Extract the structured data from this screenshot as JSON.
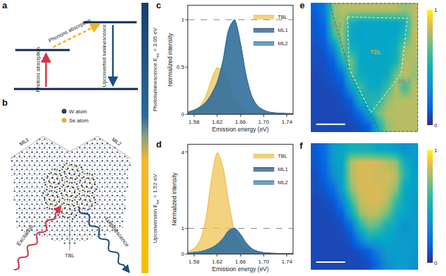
{
  "panels": {
    "a": {
      "letter": "a",
      "labels": {
        "phonons": "Phonons absorption",
        "photons": "Photons absorption",
        "luminescence": "Upconverted luminescence"
      }
    },
    "b": {
      "letter": "b",
      "legend": [
        {
          "name": "W atom",
          "color": "#2b3f5c"
        },
        {
          "name": "Se atom",
          "color": "#d9b13b"
        }
      ],
      "labels": {
        "left_flake": "ML1",
        "right_flake": "ML2",
        "center": "TBL",
        "excitation": "Excitation",
        "luminescence": "Luminescence"
      }
    },
    "strip": {
      "top": {
        "label": "Photoluminescence",
        "symbol": "E",
        "subscript": "ex",
        "value_text": "= 3.05 eV"
      },
      "bottom": {
        "label": "Upconversion",
        "symbol": "E",
        "subscript": "ex",
        "value_text": "= 1.52 eV"
      }
    }
  },
  "chart_data": [
    {
      "panel": "c",
      "type": "area",
      "x_label": "Emission energy (eV)",
      "y_label": "Normalized intensity",
      "x": [
        1.57,
        1.58,
        1.59,
        1.6,
        1.61,
        1.62,
        1.63,
        1.64,
        1.65,
        1.66,
        1.67,
        1.68,
        1.69,
        1.7,
        1.71,
        1.72,
        1.73,
        1.74,
        1.75
      ],
      "series": [
        {
          "name": "TBL",
          "color": "#eec14f",
          "values": [
            0.02,
            0.04,
            0.08,
            0.18,
            0.36,
            0.49,
            0.45,
            0.3,
            0.15,
            0.07,
            0.035,
            0.02,
            0.012,
            0.008,
            0.005,
            0.004,
            0.003,
            0.002,
            0.002
          ]
        },
        {
          "name": "ML1",
          "color": "#23507f",
          "values": [
            0.02,
            0.04,
            0.07,
            0.12,
            0.2,
            0.33,
            0.55,
            0.88,
            0.99,
            0.75,
            0.4,
            0.18,
            0.08,
            0.04,
            0.02,
            0.012,
            0.008,
            0.005,
            0.004
          ]
        },
        {
          "name": "ML2",
          "color": "#3a7ca5",
          "values": [
            0.02,
            0.04,
            0.07,
            0.12,
            0.21,
            0.34,
            0.57,
            0.9,
            1.0,
            0.74,
            0.39,
            0.17,
            0.08,
            0.04,
            0.02,
            0.012,
            0.008,
            0.005,
            0.004
          ]
        }
      ],
      "xlim": [
        1.57,
        1.75
      ],
      "xticks": [
        1.58,
        1.62,
        1.66,
        {
          "value": 1.7,
          "label": "1.70"
        },
        1.74
      ],
      "ylim": [
        0,
        1.15
      ],
      "yticks": [
        0,
        0.5,
        1
      ],
      "reference_line": {
        "y": 1,
        "line_style": "dash"
      },
      "grid": false,
      "legend": "upper right"
    },
    {
      "panel": "d",
      "type": "area",
      "x_label": "Emission energy (eV)",
      "y_label": "Normalized intensity",
      "x": [
        1.57,
        1.58,
        1.59,
        1.6,
        1.61,
        1.62,
        1.63,
        1.64,
        1.65,
        1.66,
        1.67,
        1.68,
        1.69,
        1.7,
        1.71,
        1.72,
        1.73,
        1.74,
        1.75
      ],
      "series": [
        {
          "name": "TBL",
          "color": "#eec14f",
          "values": [
            0.08,
            0.2,
            0.5,
            1.3,
            2.9,
            3.98,
            3.4,
            2.0,
            0.9,
            0.4,
            0.18,
            0.09,
            0.05,
            0.03,
            0.02,
            0.015,
            0.01,
            0.008,
            0.006
          ]
        },
        {
          "name": "ML1",
          "color": "#23507f",
          "values": [
            0.03,
            0.05,
            0.08,
            0.13,
            0.22,
            0.36,
            0.58,
            0.9,
            1.0,
            0.76,
            0.41,
            0.19,
            0.09,
            0.045,
            0.025,
            0.015,
            0.01,
            0.006,
            0.005
          ]
        },
        {
          "name": "ML2",
          "color": "#3a7ca5",
          "values": [
            0.03,
            0.05,
            0.08,
            0.14,
            0.23,
            0.37,
            0.6,
            0.91,
            0.99,
            0.74,
            0.4,
            0.18,
            0.085,
            0.04,
            0.022,
            0.013,
            0.009,
            0.006,
            0.004
          ]
        }
      ],
      "xlim": [
        1.57,
        1.75
      ],
      "xticks": [
        1.58,
        1.62,
        1.66,
        {
          "value": 1.7,
          "label": "1.70"
        },
        1.74
      ],
      "ylim": [
        0,
        4.3
      ],
      "yticks": [
        0,
        1,
        4
      ],
      "reference_line": {
        "y": 1,
        "line_style": "dash"
      },
      "grid": false,
      "legend": "upper right"
    },
    {
      "panel": "e",
      "type": "heatmap",
      "tick_labels": false,
      "annotations": [
        {
          "text": "ML1"
        },
        {
          "text": "TBL"
        },
        {
          "text": "ML2"
        }
      ],
      "cells": [
        [
          0.15,
          0.25,
          0.75,
          0.8,
          0.8,
          0.8,
          0.8,
          0.8,
          0.8,
          0.8,
          0.75,
          0.8
        ],
        [
          0.12,
          0.2,
          0.7,
          0.78,
          0.5,
          0.45,
          0.45,
          0.45,
          0.45,
          0.45,
          0.5,
          0.8
        ],
        [
          0.12,
          0.15,
          0.6,
          0.75,
          0.45,
          0.42,
          0.45,
          0.43,
          0.45,
          0.45,
          0.55,
          0.82
        ],
        [
          0.1,
          0.12,
          0.3,
          0.72,
          0.5,
          0.45,
          0.44,
          0.45,
          0.45,
          0.48,
          0.75,
          0.8
        ],
        [
          0.1,
          0.1,
          0.15,
          0.5,
          0.7,
          0.45,
          0.45,
          0.44,
          0.45,
          0.5,
          0.8,
          0.78
        ],
        [
          0.08,
          0.1,
          0.12,
          0.2,
          0.65,
          0.48,
          0.45,
          0.45,
          0.47,
          0.7,
          0.82,
          0.75
        ],
        [
          0.08,
          0.08,
          0.1,
          0.12,
          0.4,
          0.6,
          0.47,
          0.46,
          0.6,
          0.8,
          0.6,
          0.8
        ],
        [
          0.08,
          0.08,
          0.08,
          0.1,
          0.15,
          0.5,
          0.55,
          0.55,
          0.75,
          0.8,
          0.8,
          0.8
        ],
        [
          0.08,
          0.08,
          0.08,
          0.08,
          0.1,
          0.2,
          0.45,
          0.7,
          0.8,
          0.8,
          0.8,
          0.8
        ],
        [
          0.08,
          0.08,
          0.08,
          0.08,
          0.08,
          0.1,
          0.15,
          0.5,
          0.75,
          0.8,
          0.8,
          0.8
        ]
      ],
      "colorbar": {
        "range": [
          0,
          1
        ],
        "ticks": [
          0,
          1
        ]
      }
    },
    {
      "panel": "f",
      "type": "heatmap",
      "tick_labels": false,
      "cells": [
        [
          0.12,
          0.2,
          0.4,
          0.45,
          0.5,
          0.5,
          0.5,
          0.45,
          0.45,
          0.4,
          0.35,
          0.4
        ],
        [
          0.12,
          0.18,
          0.4,
          0.45,
          0.8,
          0.85,
          0.85,
          0.85,
          0.8,
          0.75,
          0.5,
          0.4
        ],
        [
          0.1,
          0.15,
          0.35,
          0.45,
          0.8,
          0.85,
          0.85,
          0.82,
          0.85,
          0.8,
          0.55,
          0.42
        ],
        [
          0.1,
          0.12,
          0.2,
          0.45,
          0.75,
          0.85,
          0.85,
          0.85,
          0.82,
          0.75,
          0.45,
          0.42
        ],
        [
          0.08,
          0.1,
          0.12,
          0.3,
          0.6,
          0.82,
          0.85,
          0.85,
          0.8,
          0.6,
          0.45,
          0.4
        ],
        [
          0.08,
          0.08,
          0.1,
          0.15,
          0.45,
          0.75,
          0.82,
          0.8,
          0.7,
          0.5,
          0.45,
          0.4
        ],
        [
          0.08,
          0.08,
          0.08,
          0.1,
          0.2,
          0.55,
          0.7,
          0.65,
          0.5,
          0.45,
          0.35,
          0.4
        ],
        [
          0.08,
          0.08,
          0.08,
          0.08,
          0.12,
          0.3,
          0.5,
          0.45,
          0.45,
          0.4,
          0.4,
          0.4
        ],
        [
          0.08,
          0.08,
          0.08,
          0.08,
          0.08,
          0.1,
          0.15,
          0.3,
          0.4,
          0.4,
          0.4,
          0.38
        ],
        [
          0.08,
          0.08,
          0.08,
          0.08,
          0.08,
          0.08,
          0.1,
          0.2,
          0.35,
          0.4,
          0.4,
          0.35
        ]
      ],
      "colorbar": {
        "range": [
          0,
          1
        ],
        "ticks": [
          0,
          1
        ]
      }
    }
  ]
}
